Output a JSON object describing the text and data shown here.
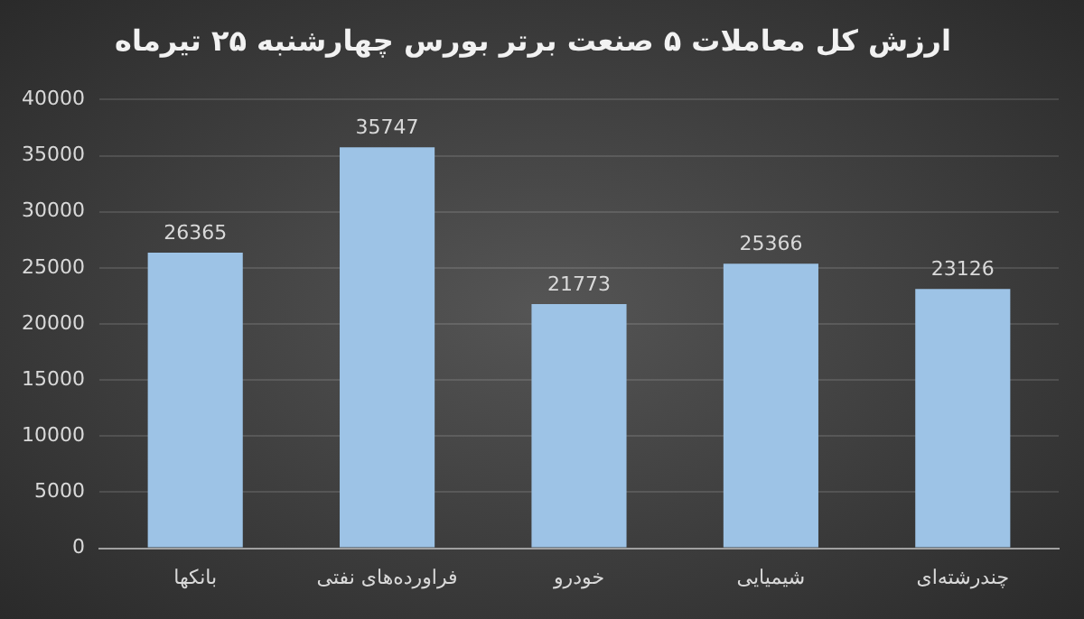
{
  "chart_data": {
    "type": "bar",
    "title": "ارزش کل معاملات ۵ صنعت برتر بورس چهارشنبه ۲۵ تیرماه",
    "categories": [
      "بانکها",
      "فراورده‌های نفتی",
      "خودرو",
      "شیمیایی",
      "چندرشته‌ای"
    ],
    "values": [
      26365,
      35747,
      21773,
      25366,
      23126
    ],
    "color": "#9dc3e6",
    "ylim": [
      0,
      40000
    ],
    "yticks": [
      0,
      5000,
      10000,
      15000,
      20000,
      25000,
      30000,
      35000,
      40000
    ],
    "grid": "y",
    "data_labels": true
  }
}
